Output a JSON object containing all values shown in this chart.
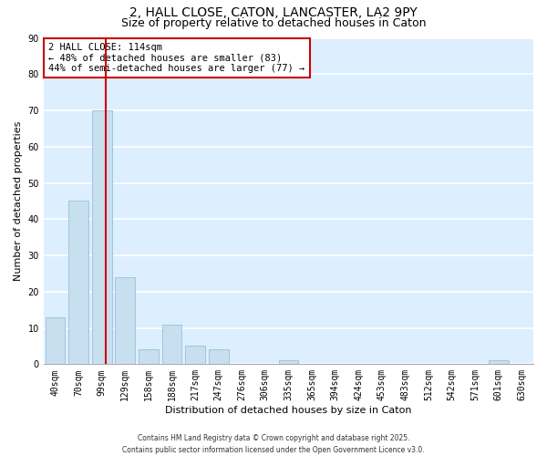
{
  "title": "2, HALL CLOSE, CATON, LANCASTER, LA2 9PY",
  "subtitle": "Size of property relative to detached houses in Caton",
  "xlabel": "Distribution of detached houses by size in Caton",
  "ylabel": "Number of detached properties",
  "bar_color": "#c8dff0",
  "bar_edge_color": "#a0c4e0",
  "background_color": "#ddeeff",
  "grid_color": "white",
  "categories": [
    "40sqm",
    "70sqm",
    "99sqm",
    "129sqm",
    "158sqm",
    "188sqm",
    "217sqm",
    "247sqm",
    "276sqm",
    "306sqm",
    "335sqm",
    "365sqm",
    "394sqm",
    "424sqm",
    "453sqm",
    "483sqm",
    "512sqm",
    "542sqm",
    "571sqm",
    "601sqm",
    "630sqm"
  ],
  "values": [
    13,
    45,
    70,
    24,
    4,
    11,
    5,
    4,
    0,
    0,
    1,
    0,
    0,
    0,
    0,
    0,
    0,
    0,
    0,
    1,
    0
  ],
  "ylim": [
    0,
    90
  ],
  "yticks": [
    0,
    10,
    20,
    30,
    40,
    50,
    60,
    70,
    80,
    90
  ],
  "vline_x_index": 2.15,
  "vline_color": "#cc0000",
  "annotation_title": "2 HALL CLOSE: 114sqm",
  "annotation_line1": "← 48% of detached houses are smaller (83)",
  "annotation_line2": "44% of semi-detached houses are larger (77) →",
  "footer_line1": "Contains HM Land Registry data © Crown copyright and database right 2025.",
  "footer_line2": "Contains public sector information licensed under the Open Government Licence v3.0.",
  "title_fontsize": 10,
  "subtitle_fontsize": 9,
  "axis_label_fontsize": 8,
  "tick_fontsize": 7,
  "annotation_fontsize": 7.5,
  "footer_fontsize": 5.5
}
